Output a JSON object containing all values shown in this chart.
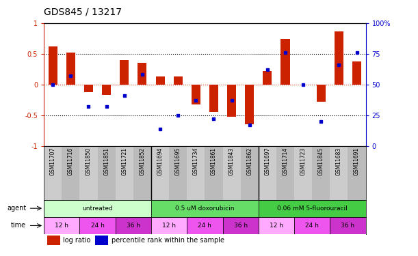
{
  "title": "GDS845 / 13217",
  "samples": [
    "GSM11707",
    "GSM11716",
    "GSM11850",
    "GSM11851",
    "GSM11721",
    "GSM11852",
    "GSM11694",
    "GSM11695",
    "GSM11734",
    "GSM11861",
    "GSM11843",
    "GSM11862",
    "GSM11697",
    "GSM11714",
    "GSM11723",
    "GSM11845",
    "GSM11683",
    "GSM11691"
  ],
  "log_ratio": [
    0.62,
    0.52,
    -0.12,
    -0.17,
    0.4,
    0.35,
    0.13,
    0.13,
    -0.32,
    -0.45,
    -0.52,
    -0.65,
    0.22,
    0.74,
    0.0,
    -0.28,
    0.86,
    0.38
  ],
  "percentile": [
    0.5,
    0.57,
    0.32,
    0.32,
    0.41,
    0.58,
    0.14,
    0.25,
    0.37,
    0.22,
    0.37,
    0.17,
    0.62,
    0.76,
    0.5,
    0.2,
    0.66,
    0.76
  ],
  "ylim": [
    -1,
    1
  ],
  "yticks_left": [
    -1,
    -0.5,
    0,
    0.5,
    1
  ],
  "ytick_labels_left": [
    "-1",
    "-0.5",
    "0",
    "0.5",
    "1"
  ],
  "ytick_labels_right": [
    "0",
    "25",
    "50",
    "75",
    "100%"
  ],
  "hlines": [
    0.5,
    0,
    -0.5
  ],
  "bar_color": "#cc2200",
  "dot_color": "#0000cc",
  "agent_groups": [
    {
      "label": "untreated",
      "start": 0,
      "end": 6,
      "color": "#ccffcc"
    },
    {
      "label": "0.5 uM doxorubicin",
      "start": 6,
      "end": 12,
      "color": "#66dd66"
    },
    {
      "label": "0.06 mM 5-fluorouracil",
      "start": 12,
      "end": 18,
      "color": "#44cc44"
    }
  ],
  "time_groups": [
    {
      "label": "12 h",
      "start": 0,
      "end": 2,
      "color": "#ffaaff"
    },
    {
      "label": "24 h",
      "start": 2,
      "end": 4,
      "color": "#ee55ee"
    },
    {
      "label": "36 h",
      "start": 4,
      "end": 6,
      "color": "#cc33cc"
    },
    {
      "label": "12 h",
      "start": 6,
      "end": 8,
      "color": "#ffaaff"
    },
    {
      "label": "24 h",
      "start": 8,
      "end": 10,
      "color": "#ee55ee"
    },
    {
      "label": "36 h",
      "start": 10,
      "end": 12,
      "color": "#cc33cc"
    },
    {
      "label": "12 h",
      "start": 12,
      "end": 14,
      "color": "#ffaaff"
    },
    {
      "label": "24 h",
      "start": 14,
      "end": 16,
      "color": "#ee55ee"
    },
    {
      "label": "36 h",
      "start": 16,
      "end": 18,
      "color": "#cc33cc"
    }
  ],
  "legend_items": [
    {
      "label": "log ratio",
      "color": "#cc2200"
    },
    {
      "label": "percentile rank within the sample",
      "color": "#0000cc"
    }
  ],
  "background_color": "#ffffff",
  "label_color_left": "#cc2200",
  "label_color_right": "#0000cc",
  "col_colors": [
    "#cccccc",
    "#bbbbbb"
  ],
  "bar_width": 0.5
}
